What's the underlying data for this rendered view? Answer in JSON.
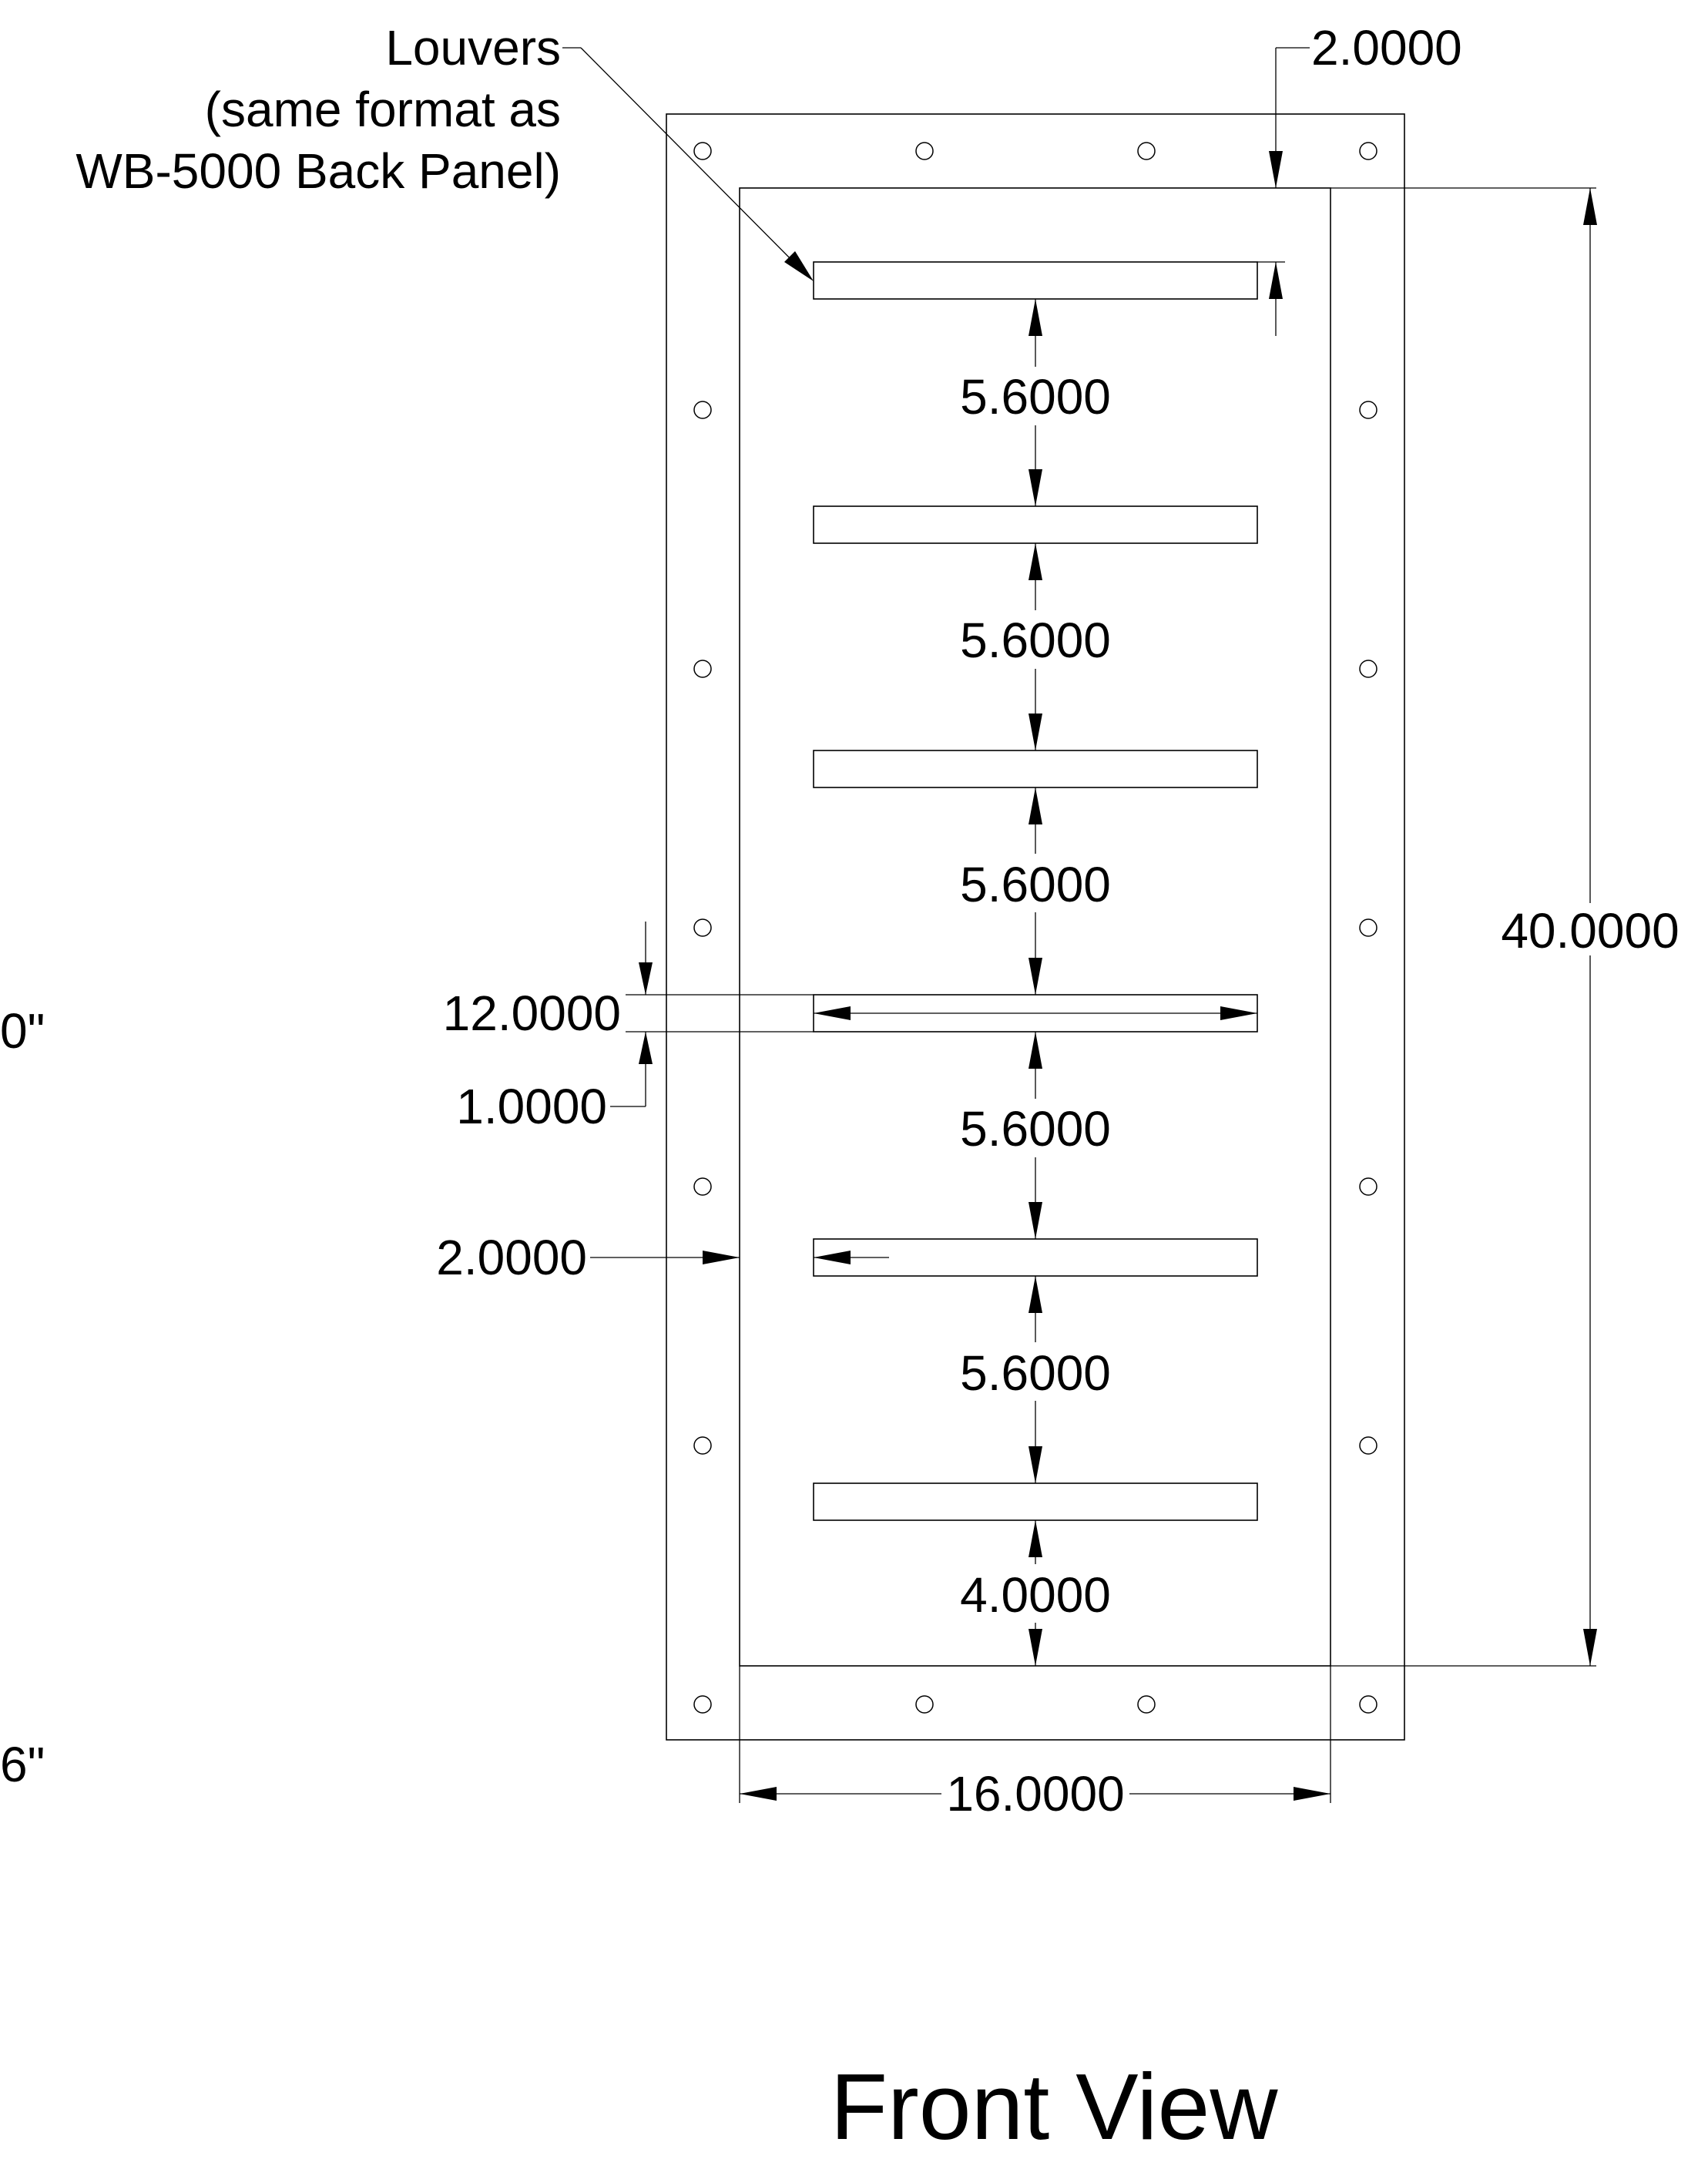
{
  "title": "Front View",
  "callout": {
    "line1": "Louvers",
    "line2": "(same format as",
    "line3": "WB-5000 Back Panel)"
  },
  "dimensions": {
    "top_offset": "2.0000",
    "overall_height": "40.0000",
    "louver_pitch_1": "5.6000",
    "louver_pitch_2": "5.6000",
    "louver_pitch_3": "5.6000",
    "louver_pitch_4": "5.6000",
    "louver_pitch_5": "5.6000",
    "bottom_offset": "4.0000",
    "louver_length": "12.0000",
    "louver_height": "1.0000",
    "side_offset": "2.0000",
    "overall_width": "16.0000"
  },
  "cut_off_text": {
    "left_upper": "0\"",
    "left_lower": "6\""
  },
  "louver_count": 6,
  "holes_per_side": 7
}
